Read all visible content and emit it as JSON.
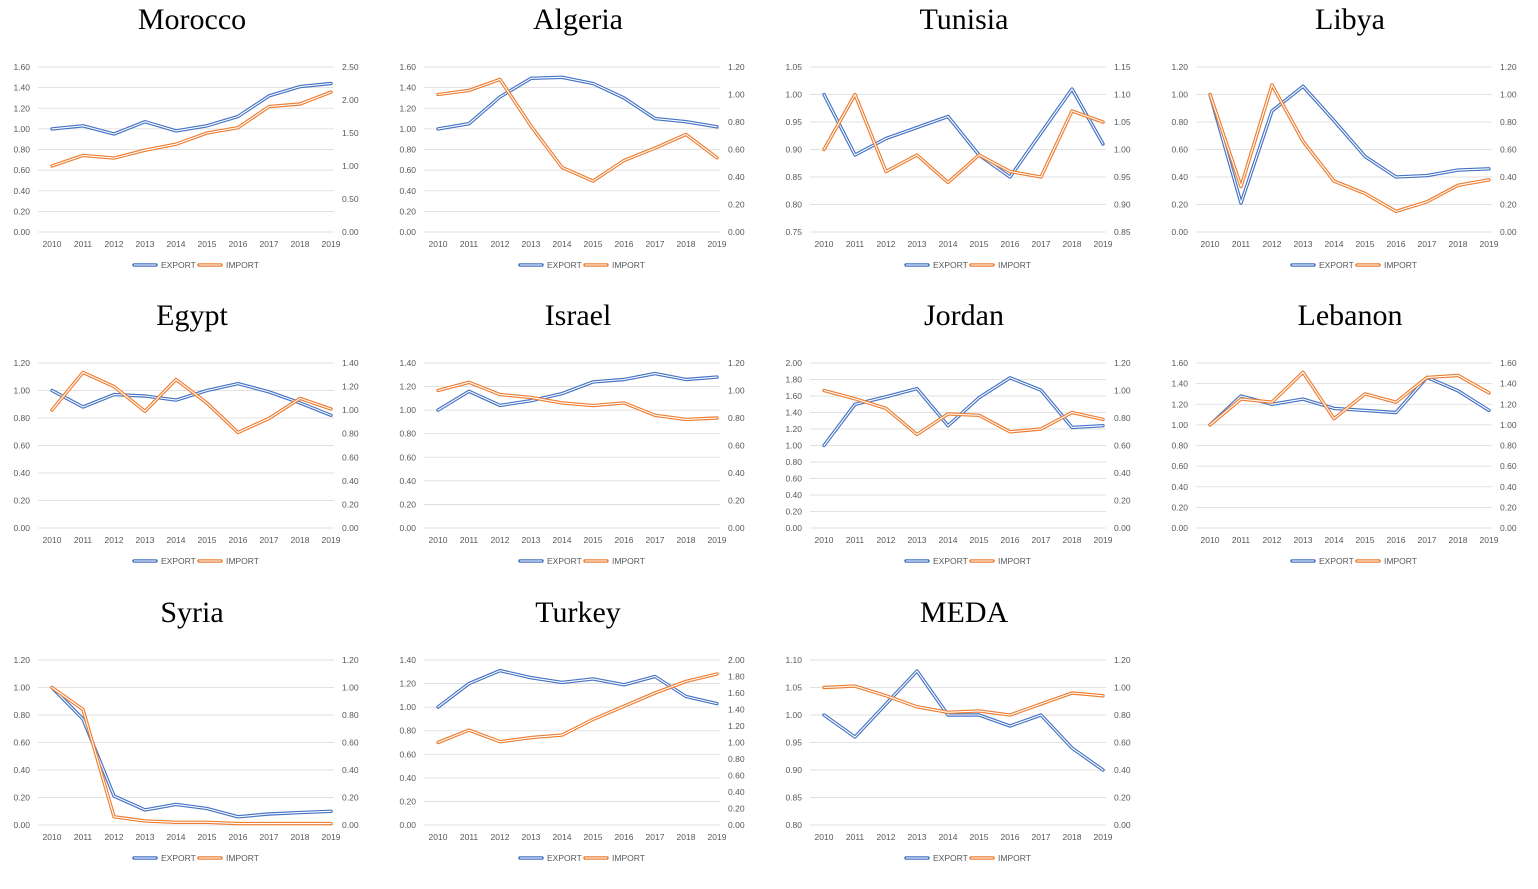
{
  "colors": {
    "export": "#4472C4",
    "import": "#ED7D31",
    "grid": "#d9d9d9"
  },
  "chart_data": [
    {
      "type": "line",
      "title": "Morocco",
      "categories": [
        "2010",
        "2011",
        "2012",
        "2013",
        "2014",
        "2015",
        "2016",
        "2017",
        "2018",
        "2019"
      ],
      "ylim": [
        0,
        1.6
      ],
      "yticks": [
        "0.00",
        "0.20",
        "0.40",
        "0.60",
        "0.80",
        "1.00",
        "1.20",
        "1.40",
        "1.60"
      ],
      "y2lim": [
        0,
        2.5
      ],
      "y2ticks": [
        "0.00",
        "0.50",
        "1.00",
        "1.50",
        "2.00",
        "2.50"
      ],
      "series": [
        {
          "name": "EXPORT",
          "axis": "left",
          "values": [
            1.0,
            1.03,
            0.95,
            1.07,
            0.98,
            1.03,
            1.12,
            1.32,
            1.41,
            1.44
          ]
        },
        {
          "name": "IMPORT",
          "axis": "right",
          "values": [
            1.0,
            1.16,
            1.12,
            1.24,
            1.33,
            1.5,
            1.58,
            1.9,
            1.94,
            2.12
          ]
        }
      ],
      "legend": "bottom"
    },
    {
      "type": "line",
      "title": "Algeria",
      "categories": [
        "2010",
        "2011",
        "2012",
        "2013",
        "2014",
        "2015",
        "2016",
        "2017",
        "2018",
        "2019"
      ],
      "ylim": [
        0,
        1.6
      ],
      "yticks": [
        "0.00",
        "0.20",
        "0.40",
        "0.60",
        "0.80",
        "1.00",
        "1.20",
        "1.40",
        "1.60"
      ],
      "y2lim": [
        0,
        1.2
      ],
      "y2ticks": [
        "0.00",
        "0.20",
        "0.40",
        "0.60",
        "0.80",
        "1.00",
        "1.20"
      ],
      "series": [
        {
          "name": "EXPORT",
          "axis": "left",
          "values": [
            1.0,
            1.05,
            1.31,
            1.49,
            1.5,
            1.44,
            1.3,
            1.1,
            1.07,
            1.02
          ]
        },
        {
          "name": "IMPORT",
          "axis": "right",
          "values": [
            1.0,
            1.03,
            1.11,
            0.77,
            0.47,
            0.37,
            0.52,
            0.61,
            0.71,
            0.54
          ]
        }
      ],
      "legend": "bottom"
    },
    {
      "type": "line",
      "title": "Tunisia",
      "categories": [
        "2010",
        "2011",
        "2012",
        "2013",
        "2014",
        "2015",
        "2016",
        "2017",
        "2018",
        "2019"
      ],
      "ylim": [
        0.75,
        1.05
      ],
      "yticks": [
        "0.75",
        "0.80",
        "0.85",
        "0.90",
        "0.95",
        "1.00",
        "1.05"
      ],
      "y2lim": [
        0.85,
        1.15
      ],
      "y2ticks": [
        "0.85",
        "0.90",
        "0.95",
        "1.00",
        "1.05",
        "1.10",
        "1.15"
      ],
      "series": [
        {
          "name": "EXPORT",
          "axis": "left",
          "values": [
            1.0,
            0.89,
            0.92,
            0.94,
            0.96,
            0.89,
            0.85,
            0.93,
            1.01,
            0.91
          ]
        },
        {
          "name": "IMPORT",
          "axis": "right",
          "values": [
            1.0,
            1.1,
            0.96,
            0.99,
            0.94,
            0.99,
            0.96,
            0.95,
            1.07,
            1.05
          ]
        }
      ],
      "legend": "bottom"
    },
    {
      "type": "line",
      "title": "Libya",
      "categories": [
        "2010",
        "2011",
        "2012",
        "2013",
        "2014",
        "2015",
        "2016",
        "2017",
        "2018",
        "2019"
      ],
      "ylim": [
        0,
        1.2
      ],
      "yticks": [
        "0.00",
        "0.20",
        "0.40",
        "0.60",
        "0.80",
        "1.00",
        "1.20"
      ],
      "y2lim": [
        0,
        1.2
      ],
      "y2ticks": [
        "0.00",
        "0.20",
        "0.40",
        "0.60",
        "0.80",
        "1.00",
        "1.20"
      ],
      "series": [
        {
          "name": "EXPORT",
          "axis": "left",
          "values": [
            1.0,
            0.21,
            0.88,
            1.06,
            0.81,
            0.55,
            0.4,
            0.41,
            0.45,
            0.46
          ]
        },
        {
          "name": "IMPORT",
          "axis": "right",
          "values": [
            1.0,
            0.33,
            1.07,
            0.66,
            0.37,
            0.28,
            0.15,
            0.22,
            0.34,
            0.38
          ]
        }
      ],
      "legend": "bottom"
    },
    {
      "type": "line",
      "title": "Egypt",
      "categories": [
        "2010",
        "2011",
        "2012",
        "2013",
        "2014",
        "2015",
        "2016",
        "2017",
        "2018",
        "2019"
      ],
      "ylim": [
        0,
        1.2
      ],
      "yticks": [
        "0.00",
        "0.20",
        "0.40",
        "0.60",
        "0.80",
        "1.00",
        "1.20"
      ],
      "y2lim": [
        0,
        1.4
      ],
      "y2ticks": [
        "0.00",
        "0.20",
        "0.40",
        "0.60",
        "0.80",
        "1.00",
        "1.20",
        "1.40"
      ],
      "series": [
        {
          "name": "EXPORT",
          "axis": "left",
          "values": [
            1.0,
            0.88,
            0.97,
            0.96,
            0.93,
            1.0,
            1.05,
            0.99,
            0.91,
            0.82
          ]
        },
        {
          "name": "IMPORT",
          "axis": "right",
          "values": [
            1.0,
            1.32,
            1.2,
            0.99,
            1.26,
            1.06,
            0.81,
            0.93,
            1.1,
            1.01
          ]
        }
      ],
      "legend": "bottom"
    },
    {
      "type": "line",
      "title": "Israel",
      "categories": [
        "2010",
        "2011",
        "2012",
        "2013",
        "2014",
        "2015",
        "2016",
        "2017",
        "2018",
        "2019"
      ],
      "ylim": [
        0,
        1.4
      ],
      "yticks": [
        "0.00",
        "0.20",
        "0.40",
        "0.60",
        "0.80",
        "1.00",
        "1.20",
        "1.40"
      ],
      "y2lim": [
        0,
        1.2
      ],
      "y2ticks": [
        "0.00",
        "0.20",
        "0.40",
        "0.60",
        "0.80",
        "1.00",
        "1.20"
      ],
      "series": [
        {
          "name": "EXPORT",
          "axis": "left",
          "values": [
            1.0,
            1.16,
            1.04,
            1.08,
            1.14,
            1.24,
            1.26,
            1.31,
            1.26,
            1.28
          ]
        },
        {
          "name": "IMPORT",
          "axis": "right",
          "values": [
            1.0,
            1.06,
            0.97,
            0.95,
            0.91,
            0.89,
            0.91,
            0.82,
            0.79,
            0.8
          ]
        }
      ],
      "legend": "bottom"
    },
    {
      "type": "line",
      "title": "Jordan",
      "categories": [
        "2010",
        "2011",
        "2012",
        "2013",
        "2014",
        "2015",
        "2016",
        "2017",
        "2018",
        "2019"
      ],
      "ylim": [
        0,
        2.0
      ],
      "yticks": [
        "0.00",
        "0.20",
        "0.40",
        "0.60",
        "0.80",
        "1.00",
        "1.20",
        "1.40",
        "1.60",
        "1.80",
        "2.00"
      ],
      "y2lim": [
        0,
        1.2
      ],
      "y2ticks": [
        "0.00",
        "0.20",
        "0.40",
        "0.60",
        "0.80",
        "1.00",
        "1.20"
      ],
      "series": [
        {
          "name": "EXPORT",
          "axis": "left",
          "values": [
            1.0,
            1.5,
            1.59,
            1.69,
            1.24,
            1.58,
            1.82,
            1.67,
            1.22,
            1.24
          ]
        },
        {
          "name": "IMPORT",
          "axis": "right",
          "values": [
            1.0,
            0.94,
            0.87,
            0.68,
            0.83,
            0.82,
            0.7,
            0.72,
            0.84,
            0.79
          ]
        }
      ],
      "legend": "bottom"
    },
    {
      "type": "line",
      "title": "Lebanon",
      "categories": [
        "2010",
        "2011",
        "2012",
        "2013",
        "2014",
        "2015",
        "2016",
        "2017",
        "2018",
        "2019"
      ],
      "ylim": [
        0,
        1.6
      ],
      "yticks": [
        "0.00",
        "0.20",
        "0.40",
        "0.60",
        "0.80",
        "1.00",
        "1.20",
        "1.40",
        "1.60"
      ],
      "y2lim": [
        0,
        1.6
      ],
      "y2ticks": [
        "0.00",
        "0.20",
        "0.40",
        "0.60",
        "0.80",
        "1.00",
        "1.20",
        "1.40",
        "1.60"
      ],
      "series": [
        {
          "name": "EXPORT",
          "axis": "left",
          "values": [
            1.0,
            1.28,
            1.2,
            1.25,
            1.16,
            1.14,
            1.12,
            1.46,
            1.33,
            1.14
          ]
        },
        {
          "name": "IMPORT",
          "axis": "right",
          "values": [
            1.0,
            1.25,
            1.22,
            1.51,
            1.06,
            1.3,
            1.22,
            1.46,
            1.48,
            1.31
          ]
        }
      ],
      "legend": "bottom"
    },
    {
      "type": "line",
      "title": "Syria",
      "categories": [
        "2010",
        "2011",
        "2012",
        "2013",
        "2014",
        "2015",
        "2016",
        "2017",
        "2018",
        "2019"
      ],
      "ylim": [
        0,
        1.2
      ],
      "yticks": [
        "0.00",
        "0.20",
        "0.40",
        "0.60",
        "0.80",
        "1.00",
        "1.20"
      ],
      "y2lim": [
        0,
        1.2
      ],
      "y2ticks": [
        "0.00",
        "0.20",
        "0.40",
        "0.60",
        "0.80",
        "1.00",
        "1.20"
      ],
      "series": [
        {
          "name": "EXPORT",
          "axis": "left",
          "values": [
            1.0,
            0.77,
            0.21,
            0.11,
            0.15,
            0.12,
            0.06,
            0.08,
            0.09,
            0.1
          ]
        },
        {
          "name": "IMPORT",
          "axis": "right",
          "values": [
            1.0,
            0.84,
            0.06,
            0.03,
            0.02,
            0.02,
            0.01,
            0.01,
            0.01,
            0.01
          ]
        }
      ],
      "legend": "bottom"
    },
    {
      "type": "line",
      "title": "Turkey",
      "categories": [
        "2010",
        "2011",
        "2012",
        "2013",
        "2014",
        "2015",
        "2016",
        "2017",
        "2018",
        "2019"
      ],
      "ylim": [
        0,
        1.4
      ],
      "yticks": [
        "0.00",
        "0.20",
        "0.40",
        "0.60",
        "0.80",
        "1.00",
        "1.20",
        "1.40"
      ],
      "y2lim": [
        0,
        2.0
      ],
      "y2ticks": [
        "0.00",
        "0.20",
        "0.40",
        "0.60",
        "0.80",
        "1.00",
        "1.20",
        "1.40",
        "1.60",
        "1.80",
        "2.00"
      ],
      "series": [
        {
          "name": "EXPORT",
          "axis": "left",
          "values": [
            1.0,
            1.2,
            1.31,
            1.25,
            1.21,
            1.24,
            1.19,
            1.26,
            1.09,
            1.03
          ]
        },
        {
          "name": "IMPORT",
          "axis": "right",
          "values": [
            1.0,
            1.15,
            1.01,
            1.06,
            1.09,
            1.28,
            1.44,
            1.6,
            1.74,
            1.83
          ]
        }
      ],
      "legend": "bottom"
    },
    {
      "type": "line",
      "title": "MEDA",
      "categories": [
        "2010",
        "2011",
        "2012",
        "2013",
        "2014",
        "2015",
        "2016",
        "2017",
        "2018",
        "2019"
      ],
      "ylim": [
        0.8,
        1.1
      ],
      "yticks": [
        "0.80",
        "0.85",
        "0.90",
        "0.95",
        "1.00",
        "1.05",
        "1.10"
      ],
      "y2lim": [
        0,
        1.2
      ],
      "y2ticks": [
        "0.00",
        "0.20",
        "0.40",
        "0.60",
        "0.80",
        "1.00",
        "1.20"
      ],
      "series": [
        {
          "name": "EXPORT",
          "axis": "left",
          "values": [
            1.0,
            0.96,
            1.02,
            1.08,
            1.0,
            1.0,
            0.98,
            1.0,
            0.94,
            0.9
          ]
        },
        {
          "name": "IMPORT",
          "axis": "right",
          "values": [
            1.0,
            1.01,
            0.94,
            0.86,
            0.82,
            0.83,
            0.8,
            0.88,
            0.96,
            0.94
          ]
        }
      ],
      "legend": "bottom"
    }
  ]
}
